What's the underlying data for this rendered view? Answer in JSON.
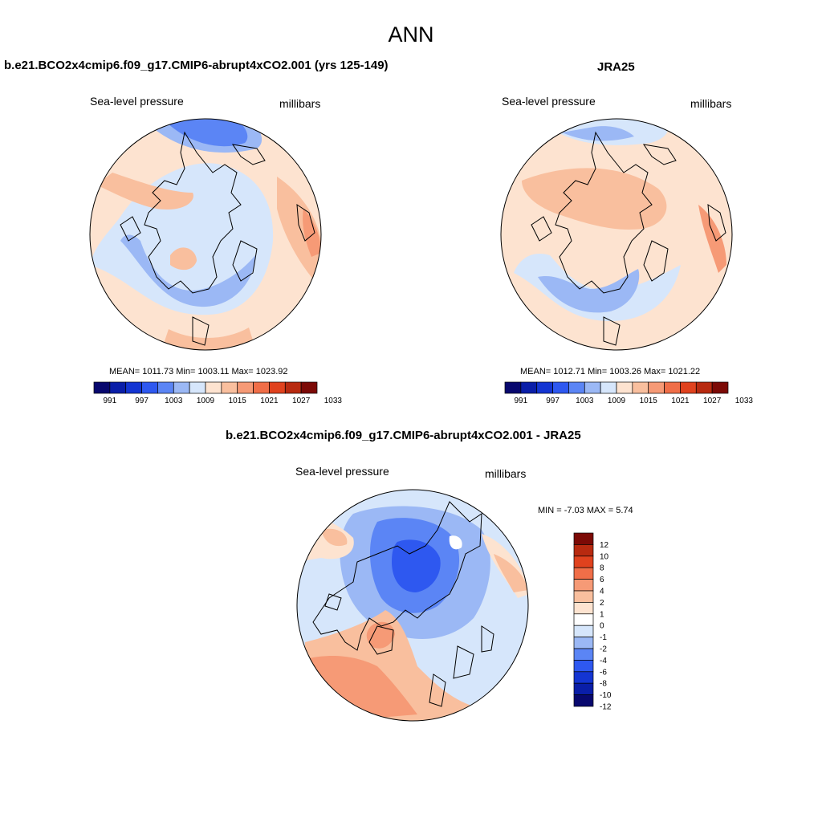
{
  "title": "ANN",
  "panels": {
    "model": {
      "title": "b.e21.BCO2x4cmip6.f09_g17.CMIP6-abrupt4xCO2.001 (yrs 125-149)",
      "variable": "Sea-level pressure",
      "units": "millibars",
      "stats": "MEAN= 1011.73  Min= 1003.11  Max= 1023.92"
    },
    "obs": {
      "title": "JRA25",
      "variable": "Sea-level pressure",
      "units": "millibars",
      "stats": "MEAN= 1012.71  Min= 1003.26  Max= 1021.22"
    },
    "diff": {
      "title": "b.e21.BCO2x4cmip6.f09_g17.CMIP6-abrupt4xCO2.001 - JRA25",
      "variable": "Sea-level pressure",
      "units": "millibars",
      "stats": "MIN =  -7.03 MAX =   5.74"
    }
  },
  "colorbar_main": {
    "labels": [
      "991",
      "997",
      "1003",
      "1009",
      "1015",
      "1021",
      "1027",
      "1033"
    ],
    "colors": [
      "#08086e",
      "#0a1ea8",
      "#1435d2",
      "#2e58f0",
      "#5b85f5",
      "#9bb8f5",
      "#d6e6fb",
      "#fde3d0",
      "#f9bf9e",
      "#f69a76",
      "#f06e48",
      "#e0421e",
      "#b82a10",
      "#7c0a06"
    ]
  },
  "colorbar_diff": {
    "labels": [
      "12",
      "10",
      "8",
      "6",
      "4",
      "2",
      "1",
      "0",
      "-1",
      "-2",
      "-4",
      "-6",
      "-8",
      "-10",
      "-12"
    ],
    "colors": [
      "#7c0a06",
      "#b82a10",
      "#e0421e",
      "#f06e48",
      "#f69a76",
      "#f9bf9e",
      "#fde3d0",
      "#ffffff",
      "#d6e6fb",
      "#9bb8f5",
      "#5b85f5",
      "#2e58f0",
      "#1435d2",
      "#0a1ea8",
      "#08086e"
    ]
  },
  "legend": {
    "fill_colors": [
      "#fde3d0",
      "#f9bf9e",
      "#f69a76",
      "#d6e6fb",
      "#9bb8f5",
      "#5b85f5",
      "#2e58f0"
    ]
  }
}
